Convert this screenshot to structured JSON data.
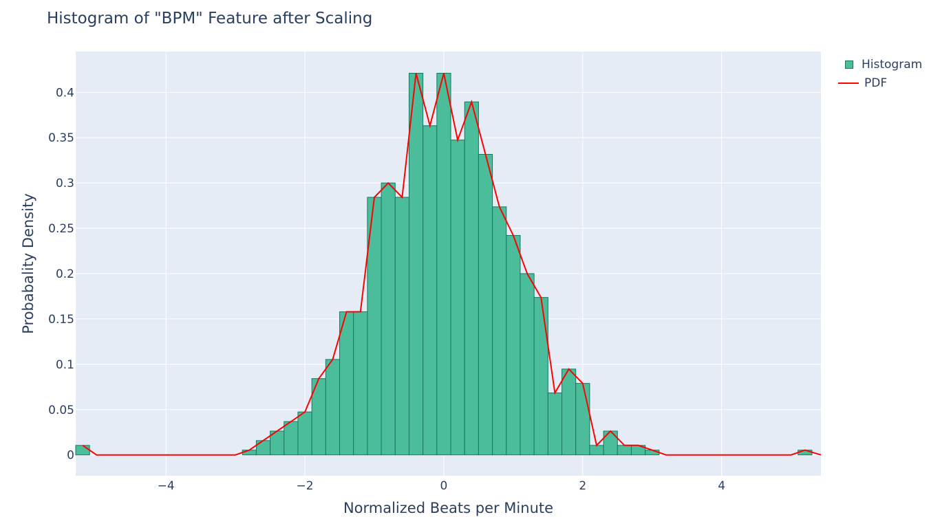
{
  "chart_data": {
    "type": "bar",
    "title": "Histogram of \"BPM\" Feature after Scaling",
    "xlabel": "Normalized Beats per Minute",
    "ylabel": "Probabality Density",
    "xlim": [
      -5.3,
      5.43
    ],
    "ylim": [
      -0.023,
      0.445
    ],
    "grid": true,
    "legend_position": "top-right",
    "bin_width": 0.2,
    "x_ticks": [
      -4,
      -2,
      0,
      2,
      4
    ],
    "x_tick_labels": [
      "−4",
      "−2",
      "0",
      "2",
      "4"
    ],
    "y_ticks": [
      0,
      0.05,
      0.1,
      0.15,
      0.2,
      0.25,
      0.3,
      0.35,
      0.4
    ],
    "y_tick_labels": [
      "0",
      "0.05",
      "0.1",
      "0.15",
      "0.2",
      "0.25",
      "0.3",
      "0.35",
      "0.4"
    ],
    "series": [
      {
        "name": "Histogram",
        "kind": "bar",
        "color": "#4cbd9a",
        "edge_color": "#167760",
        "bins": [
          {
            "x0": -5.3,
            "x1": -5.1,
            "y": 0.0105
          },
          {
            "x0": -2.9,
            "x1": -2.7,
            "y": 0.0053
          },
          {
            "x0": -2.7,
            "x1": -2.5,
            "y": 0.0158
          },
          {
            "x0": -2.5,
            "x1": -2.3,
            "y": 0.0263
          },
          {
            "x0": -2.3,
            "x1": -2.1,
            "y": 0.0368
          },
          {
            "x0": -2.1,
            "x1": -1.9,
            "y": 0.0474
          },
          {
            "x0": -1.9,
            "x1": -1.7,
            "y": 0.0842
          },
          {
            "x0": -1.7,
            "x1": -1.5,
            "y": 0.1053
          },
          {
            "x0": -1.5,
            "x1": -1.3,
            "y": 0.1579
          },
          {
            "x0": -1.3,
            "x1": -1.1,
            "y": 0.1579
          },
          {
            "x0": -1.1,
            "x1": -0.9,
            "y": 0.2842
          },
          {
            "x0": -0.9,
            "x1": -0.7,
            "y": 0.3
          },
          {
            "x0": -0.7,
            "x1": -0.5,
            "y": 0.2842
          },
          {
            "x0": -0.5,
            "x1": -0.3,
            "y": 0.4211
          },
          {
            "x0": -0.3,
            "x1": -0.1,
            "y": 0.3632
          },
          {
            "x0": -0.1,
            "x1": 0.1,
            "y": 0.4211
          },
          {
            "x0": 0.1,
            "x1": 0.3,
            "y": 0.3474
          },
          {
            "x0": 0.3,
            "x1": 0.5,
            "y": 0.3895
          },
          {
            "x0": 0.5,
            "x1": 0.7,
            "y": 0.3316
          },
          {
            "x0": 0.7,
            "x1": 0.9,
            "y": 0.2737
          },
          {
            "x0": 0.9,
            "x1": 1.1,
            "y": 0.2421
          },
          {
            "x0": 1.1,
            "x1": 1.3,
            "y": 0.2
          },
          {
            "x0": 1.3,
            "x1": 1.5,
            "y": 0.1737
          },
          {
            "x0": 1.5,
            "x1": 1.7,
            "y": 0.0684
          },
          {
            "x0": 1.7,
            "x1": 1.9,
            "y": 0.0947
          },
          {
            "x0": 1.9,
            "x1": 2.1,
            "y": 0.0789
          },
          {
            "x0": 2.1,
            "x1": 2.3,
            "y": 0.0105
          },
          {
            "x0": 2.3,
            "x1": 2.5,
            "y": 0.0263
          },
          {
            "x0": 2.5,
            "x1": 2.7,
            "y": 0.0105
          },
          {
            "x0": 2.7,
            "x1": 2.9,
            "y": 0.0105
          },
          {
            "x0": 2.9,
            "x1": 3.1,
            "y": 0.0053
          },
          {
            "x0": 5.1,
            "x1": 5.3,
            "y": 0.0053
          }
        ]
      },
      {
        "name": "PDF",
        "kind": "line",
        "color": "#ff0000",
        "x": [
          -5.2,
          -5.0,
          -3.0,
          -2.8,
          -2.6,
          -2.4,
          -2.2,
          -2.0,
          -1.8,
          -1.6,
          -1.4,
          -1.2,
          -1.0,
          -0.8,
          -0.6,
          -0.4,
          -0.2,
          0.0,
          0.2,
          0.4,
          0.6,
          0.8,
          1.0,
          1.2,
          1.4,
          1.6,
          1.8,
          2.0,
          2.2,
          2.4,
          2.6,
          2.8,
          3.0,
          3.2,
          5.0,
          5.2,
          5.43
        ],
        "y": [
          0.0105,
          0.0,
          0.0,
          0.0053,
          0.0158,
          0.0263,
          0.0368,
          0.0474,
          0.0842,
          0.1053,
          0.1579,
          0.1579,
          0.2842,
          0.3,
          0.2842,
          0.4211,
          0.3632,
          0.4211,
          0.3474,
          0.3895,
          0.3316,
          0.2737,
          0.2421,
          0.2,
          0.1737,
          0.0684,
          0.0947,
          0.0789,
          0.0105,
          0.0263,
          0.0105,
          0.0105,
          0.0053,
          0.0,
          0.0,
          0.0053,
          0.0
        ]
      }
    ]
  }
}
